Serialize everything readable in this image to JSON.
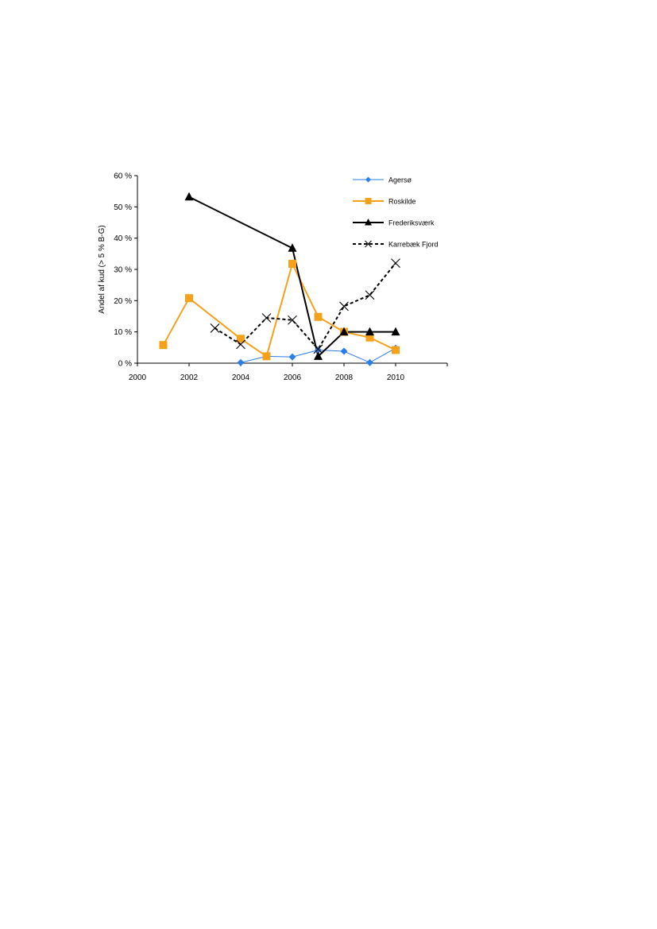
{
  "chart_data": {
    "type": "line",
    "title": "",
    "xlabel": "",
    "ylabel": "Andel af kud  (> 5 % B-G)",
    "xlim": [
      2000,
      2012
    ],
    "ylim": [
      0,
      60
    ],
    "x_ticks": [
      "2000",
      "2002",
      "2004",
      "2006",
      "2008",
      "2010"
    ],
    "y_ticks": [
      "0 %",
      "10 %",
      "20 %",
      "30 %",
      "40 %",
      "50 %",
      "60 %"
    ],
    "grid": false,
    "legend_position": "top-right",
    "series": [
      {
        "name": "Agersø",
        "color": "#2b7de9",
        "marker": "diamond",
        "dash": "solid",
        "x": [
          2004,
          2005,
          2006,
          2007,
          2008,
          2009,
          2010
        ],
        "y": [
          0.2,
          2.2,
          2.0,
          4.2,
          3.8,
          0.2,
          4.8
        ]
      },
      {
        "name": "Roskilde",
        "color": "#f5a11a",
        "marker": "square",
        "dash": "solid",
        "x": [
          2001,
          2002,
          2004,
          2005,
          2006,
          2007,
          2008,
          2009,
          2010
        ],
        "y": [
          5.8,
          20.8,
          7.8,
          2.2,
          31.8,
          14.8,
          10.0,
          8.2,
          4.2
        ]
      },
      {
        "name": "Frederiksværk",
        "color": "#000000",
        "marker": "triangle",
        "dash": "solid",
        "x": [
          2002,
          2006,
          2007,
          2008,
          2009,
          2010
        ],
        "y": [
          53.2,
          36.8,
          2.2,
          10.0,
          10.0,
          10.0
        ]
      },
      {
        "name": "Karrebæk Fjord",
        "color": "#000000",
        "marker": "x",
        "dash": "dashed",
        "x": [
          2003,
          2004,
          2005,
          2006,
          2007,
          2008,
          2009,
          2010
        ],
        "y": [
          11.2,
          6.0,
          14.5,
          13.8,
          4.5,
          18.2,
          21.8,
          32.0
        ]
      }
    ]
  }
}
